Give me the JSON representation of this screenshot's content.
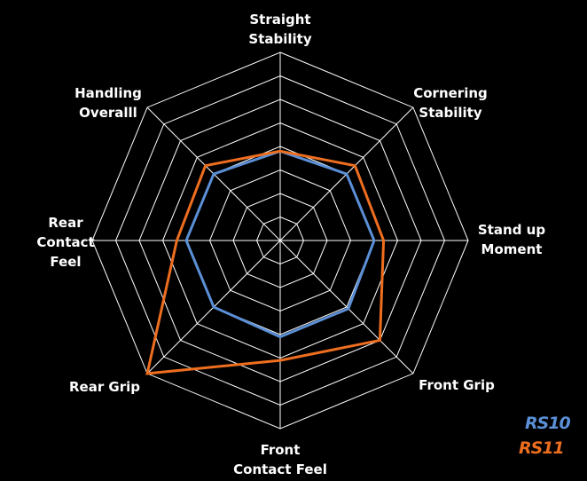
{
  "chart_data": {
    "type": "radar",
    "categories": [
      "Straight\nStability",
      "Cornering\nStability",
      "Stand up\nMoment",
      "Front Grip",
      "Front\nContact Feel",
      "Rear Grip",
      "Rear\nContact\nFeel",
      "Handling\nOveralll"
    ],
    "series": [
      {
        "name": "RS10",
        "color": "#5b8fd6",
        "values": [
          3.8,
          4,
          4,
          4.1,
          4.1,
          4,
          4,
          4
        ]
      },
      {
        "name": "RS11",
        "color": "#ee6e1f",
        "values": [
          3.8,
          4.5,
          4.4,
          6,
          5.1,
          8,
          4.4,
          4.5
        ]
      }
    ],
    "rlim": [
      0,
      8
    ],
    "rticks": [
      1,
      2,
      3,
      4,
      5,
      6,
      7,
      8
    ],
    "grid": true
  }
}
